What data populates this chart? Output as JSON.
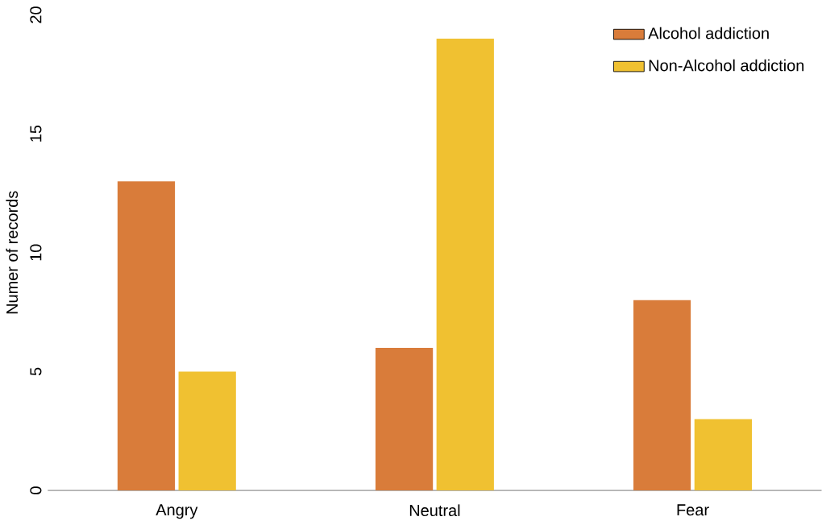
{
  "chart_data": {
    "type": "bar",
    "ylabel": "Numer of records",
    "categories": [
      "Angry",
      "Neutral",
      "Fear"
    ],
    "series": [
      {
        "name": "Alcohol addiction",
        "color": "#d97c3a",
        "values": [
          13,
          6,
          8
        ]
      },
      {
        "name": "Non-Alcohol addiction",
        "color": "#f0c131",
        "values": [
          5,
          19,
          3
        ]
      }
    ],
    "ylim": [
      0,
      20
    ],
    "yticks": [
      0,
      5,
      10,
      15,
      20
    ],
    "legend": "top right",
    "grid": false
  }
}
